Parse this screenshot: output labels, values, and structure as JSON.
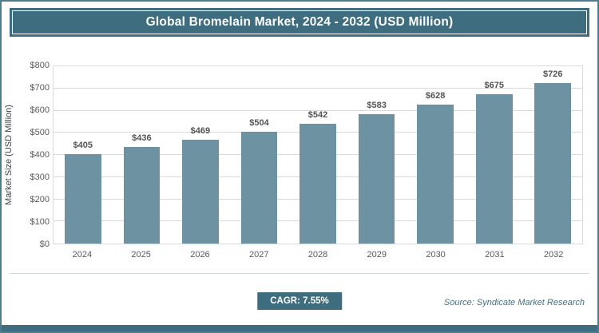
{
  "chart_data": {
    "type": "bar",
    "title": "Global Bromelain Market, 2024 - 2032 (USD Million)",
    "ylabel": "Market Size (USD Million)",
    "xlabel": "",
    "categories": [
      "2024",
      "2025",
      "2026",
      "2027",
      "2028",
      "2029",
      "2030",
      "2031",
      "2032"
    ],
    "values": [
      405,
      436,
      469,
      504,
      542,
      583,
      628,
      675,
      726
    ],
    "labels": [
      "$405",
      "$436",
      "$469",
      "$504",
      "$542",
      "$583",
      "$628",
      "$675",
      "$726"
    ],
    "ylim": [
      0,
      800
    ],
    "ytick_step": 100,
    "yticks": [
      "$0",
      "$100",
      "$200",
      "$300",
      "$400",
      "$500",
      "$600",
      "$700",
      "$800"
    ],
    "grid": true,
    "legend": "none"
  },
  "footer": {
    "cagr": "CAGR: 7.55%",
    "source": "Source: Syndicate Market Research"
  },
  "colors": {
    "header_bg": "#3e6d80",
    "bar": "#6d93a3",
    "badge_bg": "#3e6d80",
    "bottom_strip": "#3e6d80",
    "frame_border": "#4e7d90",
    "grid": "#d9d9d9"
  }
}
